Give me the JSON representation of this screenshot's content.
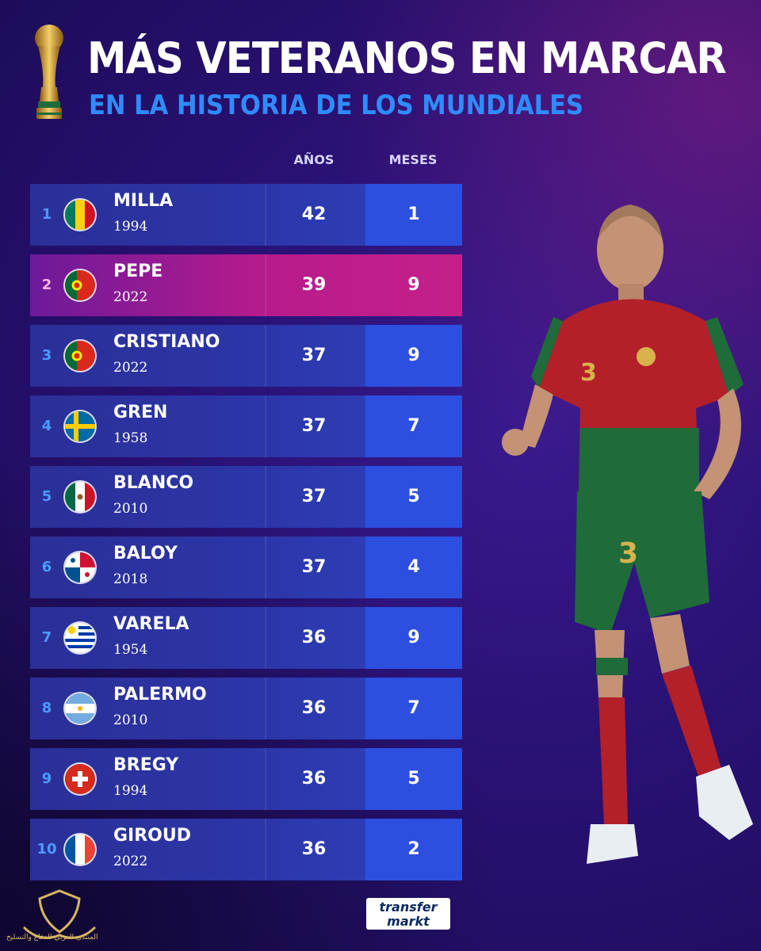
{
  "header": {
    "title": "MÁS VETERANOS EN MARCAR",
    "subtitle": "EN LA HISTORIA DE LOS MUNDIALES"
  },
  "columns": {
    "years": "AÑOS",
    "months": "MESES"
  },
  "rows": [
    {
      "rank": "1",
      "name": "MILLA",
      "year": "1994",
      "years": "42",
      "months": "1",
      "flag": "cameroon-flag"
    },
    {
      "rank": "2",
      "name": "PEPE",
      "year": "2022",
      "years": "39",
      "months": "9",
      "flag": "portugal-flag",
      "highlight": true
    },
    {
      "rank": "3",
      "name": "CRISTIANO",
      "year": "2022",
      "years": "37",
      "months": "9",
      "flag": "portugal-flag"
    },
    {
      "rank": "4",
      "name": "GREN",
      "year": "1958",
      "years": "37",
      "months": "7",
      "flag": "sweden-flag"
    },
    {
      "rank": "5",
      "name": "BLANCO",
      "year": "2010",
      "years": "37",
      "months": "5",
      "flag": "mexico-flag"
    },
    {
      "rank": "6",
      "name": "BALOY",
      "year": "2018",
      "years": "37",
      "months": "4",
      "flag": "panama-flag"
    },
    {
      "rank": "7",
      "name": "VARELA",
      "year": "1954",
      "years": "36",
      "months": "9",
      "flag": "uruguay-flag"
    },
    {
      "rank": "8",
      "name": "PALERMO",
      "year": "2010",
      "years": "36",
      "months": "7",
      "flag": "argentina-flag"
    },
    {
      "rank": "9",
      "name": "BREGY",
      "year": "1994",
      "years": "36",
      "months": "5",
      "flag": "switzerland-flag"
    },
    {
      "rank": "10",
      "name": "GIROUD",
      "year": "2022",
      "years": "36",
      "months": "2",
      "flag": "france-flag"
    }
  ],
  "player": {
    "shirt_number": "3"
  },
  "brand": {
    "line1": "transfer",
    "line2": "markt"
  },
  "watermark": {
    "text": "المنتدى العربي للدفاع والتسليح"
  },
  "colors": {
    "accent_blue": "#2f8cff",
    "highlight_pink": "#c5208a",
    "row_blue": "#2c36a9",
    "months_blue": "#2d4fe0"
  }
}
